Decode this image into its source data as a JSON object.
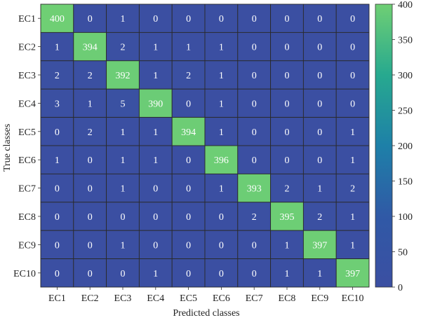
{
  "chart_data": {
    "type": "heatmap",
    "xlabel": "Predicted classes",
    "ylabel": "True classes",
    "x_categories": [
      "EC1",
      "EC2",
      "EC3",
      "EC4",
      "EC5",
      "EC6",
      "EC7",
      "EC8",
      "EC9",
      "EC10"
    ],
    "y_categories": [
      "EC1",
      "EC2",
      "EC3",
      "EC4",
      "EC5",
      "EC6",
      "EC7",
      "EC8",
      "EC9",
      "EC10"
    ],
    "matrix": [
      [
        400,
        0,
        1,
        0,
        0,
        0,
        0,
        0,
        0,
        0
      ],
      [
        1,
        394,
        2,
        1,
        1,
        1,
        0,
        0,
        0,
        0
      ],
      [
        2,
        2,
        392,
        1,
        2,
        1,
        0,
        0,
        0,
        0
      ],
      [
        3,
        1,
        5,
        390,
        0,
        1,
        0,
        0,
        0,
        0
      ],
      [
        0,
        2,
        1,
        1,
        394,
        1,
        0,
        0,
        0,
        1
      ],
      [
        1,
        0,
        1,
        1,
        0,
        396,
        0,
        0,
        0,
        1
      ],
      [
        0,
        0,
        1,
        0,
        0,
        1,
        393,
        2,
        1,
        2
      ],
      [
        0,
        0,
        0,
        0,
        0,
        0,
        2,
        395,
        2,
        1
      ],
      [
        0,
        0,
        1,
        0,
        0,
        0,
        0,
        1,
        397,
        1
      ],
      [
        0,
        0,
        0,
        1,
        0,
        0,
        0,
        1,
        1,
        397
      ]
    ],
    "colorbar": {
      "min": 0,
      "max": 400,
      "ticks": [
        0,
        50,
        100,
        150,
        200,
        250,
        300,
        350,
        400
      ]
    },
    "colors": {
      "low": "#3b4fa2",
      "mid": "#1e9a9a",
      "high": "#6fcf74",
      "cell_text": "#ffffff"
    },
    "grid": true
  }
}
